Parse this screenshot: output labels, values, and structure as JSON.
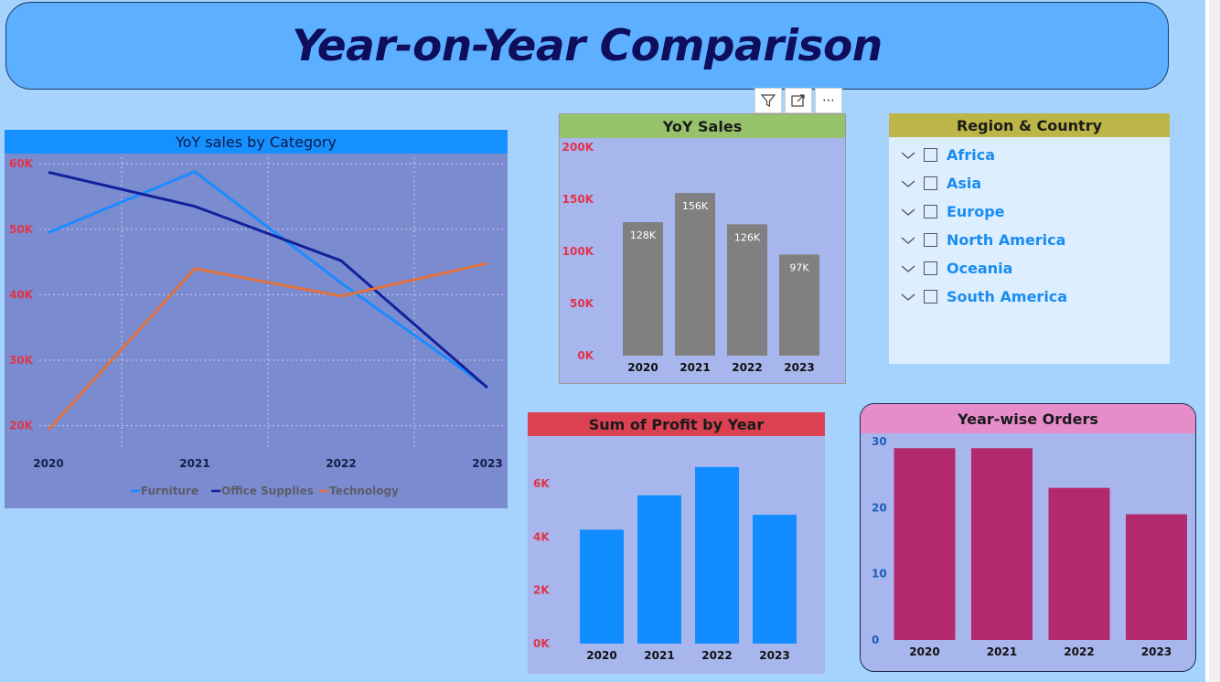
{
  "title": "Year-on-Year Comparison",
  "visual_toolbar": {
    "icons": [
      "filter-icon",
      "focus-mode-icon",
      "more-options-icon"
    ],
    "more_label": "⋯"
  },
  "colors": {
    "background": "#a6d3fd",
    "banner": "#5cb0ff",
    "furniture": "#1a8cff",
    "office_supplies": "#13209c",
    "technology": "#e0703e",
    "sales_bar": "#808080",
    "profit_bar": "#118dff",
    "orders_bar": "#b3296d",
    "axis_red": "#e0344a",
    "axis_navy": "#13204a"
  },
  "category_chart": {
    "header": "YoY sales by Category",
    "chart_data": {
      "type": "line",
      "x": [
        "2020",
        "2021",
        "2022",
        "2023"
      ],
      "ylim": [
        18000,
        61000
      ],
      "yticks": [
        20000,
        30000,
        40000,
        50000,
        60000
      ],
      "ytick_labels": [
        "20K",
        "30K",
        "40K",
        "50K",
        "60K"
      ],
      "grid": true,
      "legend": "bottom",
      "series": [
        {
          "name": "Furniture",
          "values": [
            49500,
            58800,
            41800,
            25900
          ]
        },
        {
          "name": "Office Supplies",
          "values": [
            58700,
            53500,
            45200,
            25800
          ]
        },
        {
          "name": "Technology",
          "values": [
            19400,
            44000,
            39800,
            44800
          ]
        }
      ]
    }
  },
  "sales_chart": {
    "header": "YoY Sales",
    "chart_data": {
      "type": "bar",
      "categories": [
        "2020",
        "2021",
        "2022",
        "2023"
      ],
      "values": [
        128000,
        156000,
        126000,
        97000
      ],
      "data_labels": [
        "128K",
        "156K",
        "126K",
        "97K"
      ],
      "ylim": [
        0,
        200000
      ],
      "yticks": [
        0,
        50000,
        100000,
        150000,
        200000
      ],
      "ytick_labels": [
        "0K",
        "50K",
        "100K",
        "150K",
        "200K"
      ]
    }
  },
  "region_slicer": {
    "header": "Region & Country",
    "items": [
      "Africa",
      "Asia",
      "Europe",
      "North America",
      "Oceania",
      "South America"
    ]
  },
  "profit_chart": {
    "header": "Sum of Profit by Year",
    "chart_data": {
      "type": "bar",
      "categories": [
        "2020",
        "2021",
        "2022",
        "2023"
      ],
      "values": [
        4270,
        5560,
        6620,
        4830
      ],
      "ylim": [
        0,
        7300
      ],
      "yticks": [
        0,
        2000,
        4000,
        6000
      ],
      "ytick_labels": [
        "0K",
        "2K",
        "4K",
        "6K"
      ]
    }
  },
  "orders_chart": {
    "header": "Year-wise Orders",
    "chart_data": {
      "type": "bar",
      "categories": [
        "2020",
        "2021",
        "2022",
        "2023"
      ],
      "values": [
        29,
        29,
        23,
        19
      ],
      "ylim": [
        0,
        30
      ],
      "yticks": [
        0,
        10,
        20,
        30
      ],
      "ytick_labels": [
        "0",
        "10",
        "20",
        "30"
      ]
    }
  }
}
